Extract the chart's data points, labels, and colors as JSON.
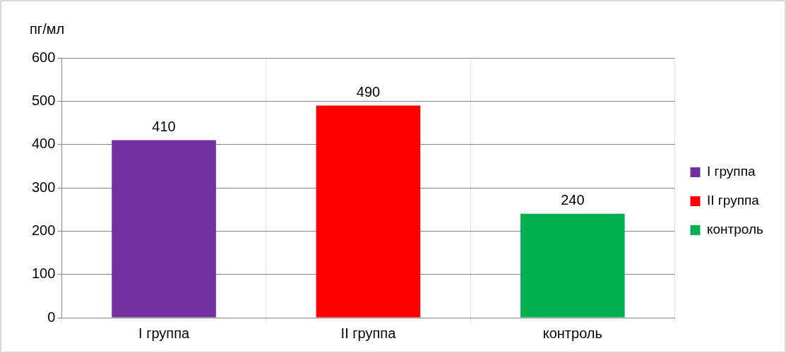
{
  "chart_data": {
    "type": "bar",
    "ylabel": "пг/мл",
    "categories": [
      "I группа",
      "II группа",
      "контроль"
    ],
    "series": [
      {
        "name": "I группа",
        "color": "#7030a0",
        "values": [
          410,
          null,
          null
        ]
      },
      {
        "name": "II группа",
        "color": "#ff0000",
        "values": [
          null,
          490,
          null
        ]
      },
      {
        "name": "контроль",
        "color": "#00b050",
        "values": [
          null,
          null,
          240
        ]
      }
    ],
    "ylim": [
      0,
      600
    ],
    "yticks": [
      0,
      100,
      200,
      300,
      400,
      500,
      600
    ],
    "grid": true,
    "legend": "right",
    "data_labels": true
  }
}
